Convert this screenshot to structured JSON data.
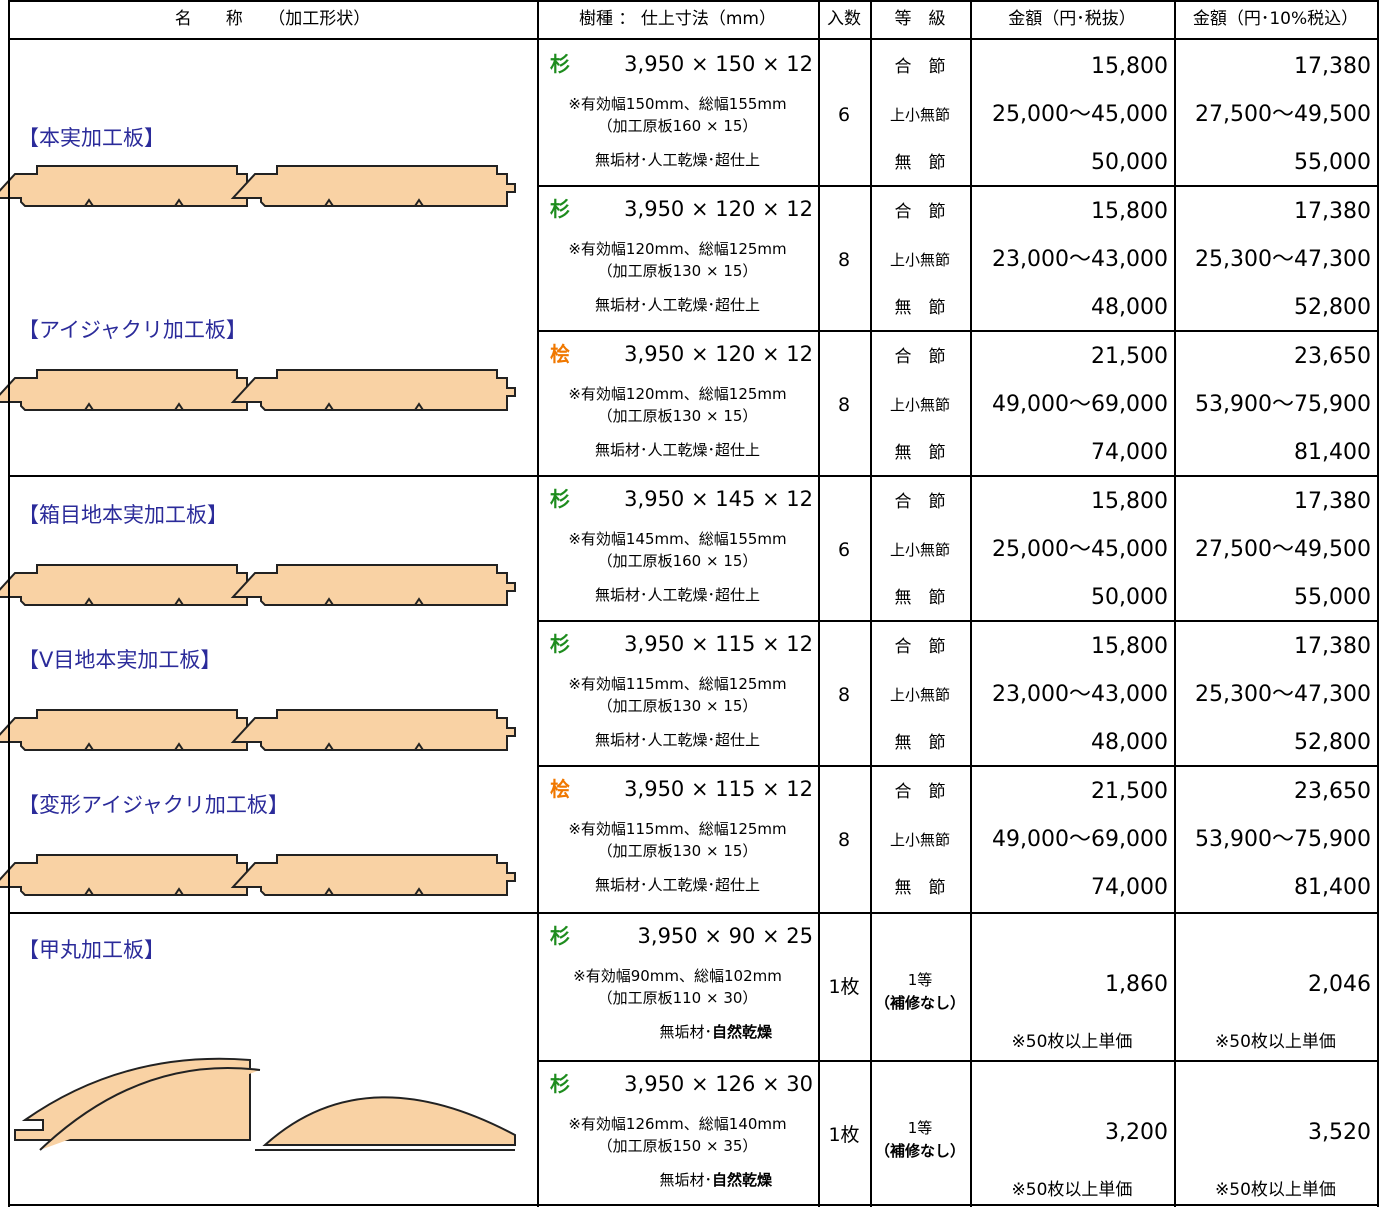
{
  "header": [
    "名　　称　　（加工形状）",
    "樹種 ： 仕上寸法（mm）",
    "入数",
    "等　級",
    "金額（円･税抜）",
    "金額（円･10%税込）"
  ],
  "names": [
    {
      "label": "【本実加工板】"
    },
    {
      "label": "【アイジャクリ加工板】"
    },
    {
      "label": "【箱目地本実加工板】"
    },
    {
      "label": "【V目地本実加工板】"
    },
    {
      "label": "【変形アイジャクリ加工板】"
    },
    {
      "label": "【甲丸加工板】"
    }
  ],
  "products": [
    {
      "species": "杉",
      "species_color": "#1e8c1e",
      "dims": "3,950 × 150 × 12",
      "notes": [
        "※有効幅150mm、総幅155mm",
        "（加工原板160 × 15）"
      ],
      "finish": "無垢材･人工乾燥･超仕上",
      "count": "6",
      "grades": [
        "合　節",
        "上小無節",
        "無　節"
      ],
      "price_ex": [
        "15,800",
        "25,000～45,000",
        "50,000"
      ],
      "price_in": [
        "17,380",
        "27,500～49,500",
        "55,000"
      ]
    },
    {
      "species": "杉",
      "species_color": "#1e8c1e",
      "dims": "3,950 × 120 × 12",
      "notes": [
        "※有効幅120mm、総幅125mm",
        "（加工原板130 × 15）"
      ],
      "finish": "無垢材･人工乾燥･超仕上",
      "count": "8",
      "grades": [
        "合　節",
        "上小無節",
        "無　節"
      ],
      "price_ex": [
        "15,800",
        "23,000～43,000",
        "48,000"
      ],
      "price_in": [
        "17,380",
        "25,300～47,300",
        "52,800"
      ]
    },
    {
      "species": "桧",
      "species_color": "#f07800",
      "dims": "3,950 × 120 × 12",
      "notes": [
        "※有効幅120mm、総幅125mm",
        "（加工原板130 × 15）"
      ],
      "finish": "無垢材･人工乾燥･超仕上",
      "count": "8",
      "grades": [
        "合　節",
        "上小無節",
        "無　節"
      ],
      "price_ex": [
        "21,500",
        "49,000～69,000",
        "74,000"
      ],
      "price_in": [
        "23,650",
        "53,900～75,900",
        "81,400"
      ]
    },
    {
      "species": "杉",
      "species_color": "#1e8c1e",
      "dims": "3,950 × 145 × 12",
      "notes": [
        "※有効幅145mm、総幅155mm",
        "（加工原板160 × 15）"
      ],
      "finish": "無垢材･人工乾燥･超仕上",
      "count": "6",
      "grades": [
        "合　節",
        "上小無節",
        "無　節"
      ],
      "price_ex": [
        "15,800",
        "25,000～45,000",
        "50,000"
      ],
      "price_in": [
        "17,380",
        "27,500～49,500",
        "55,000"
      ]
    },
    {
      "species": "杉",
      "species_color": "#1e8c1e",
      "dims": "3,950 × 115 × 12",
      "notes": [
        "※有効幅115mm、総幅125mm",
        "（加工原板130 × 15）"
      ],
      "finish": "無垢材･人工乾燥･超仕上",
      "count": "8",
      "grades": [
        "合　節",
        "上小無節",
        "無　節"
      ],
      "price_ex": [
        "15,800",
        "23,000～43,000",
        "48,000"
      ],
      "price_in": [
        "17,380",
        "25,300～47,300",
        "52,800"
      ]
    },
    {
      "species": "桧",
      "species_color": "#f07800",
      "dims": "3,950 × 115 × 12",
      "notes": [
        "※有効幅115mm、総幅125mm",
        "（加工原板130 × 15）"
      ],
      "finish": "無垢材･人工乾燥･超仕上",
      "count": "8",
      "grades": [
        "合　節",
        "上小無節",
        "無　節"
      ],
      "price_ex": [
        "21,500",
        "49,000～69,000",
        "74,000"
      ],
      "price_in": [
        "23,650",
        "53,900～75,900",
        "81,400"
      ]
    },
    {
      "species": "杉",
      "species_color": "#1e8c1e",
      "dims": "3,950 × 90 × 25",
      "notes": [
        "※有効幅90mm、総幅102mm",
        "（加工原板110 × 30）"
      ],
      "finish": "無垢材･",
      "finish_bold": "自然乾燥",
      "count": "1枚",
      "grades": [
        "1等",
        "（補修なし）"
      ],
      "price_ex": [
        "1,860",
        "※50枚以上単価"
      ],
      "price_in": [
        "2,046",
        "※50枚以上単価"
      ]
    },
    {
      "species": "杉",
      "species_color": "#1e8c1e",
      "dims": "3,950 × 126 × 30",
      "notes": [
        "※有効幅126mm、総幅140mm",
        "（加工原板150 × 35）"
      ],
      "finish": "無垢材･",
      "finish_bold": "自然乾燥",
      "count": "1枚",
      "grades": [
        "1等",
        "（補修なし）"
      ],
      "price_ex": [
        "3,200",
        "※50枚以上単価"
      ],
      "price_in": [
        "3,520",
        "※50枚以上単価"
      ]
    }
  ]
}
